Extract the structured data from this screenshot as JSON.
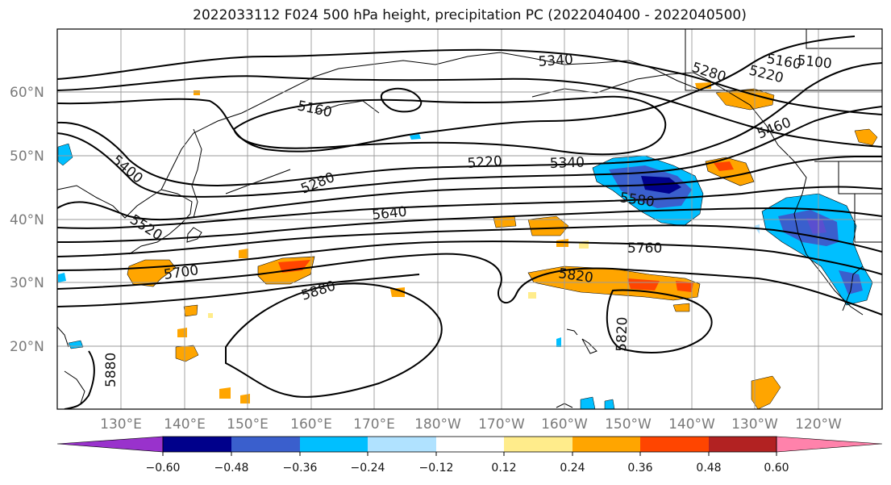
{
  "title": "2022033112 F024 500 hPa height, precipitation PC (2022040400 - 2022040500)",
  "lat_labels": [
    "60°N",
    "50°N",
    "40°N",
    "30°N",
    "20°N"
  ],
  "lon_labels": [
    "130°E",
    "140°E",
    "150°E",
    "160°E",
    "170°E",
    "180°W",
    "170°W",
    "160°W",
    "150°W",
    "140°W",
    "130°W",
    "120°W"
  ],
  "colorbar": {
    "ticks": [
      "−0.60",
      "−0.48",
      "−0.36",
      "−0.24",
      "−0.12",
      "0.12",
      "0.24",
      "0.36",
      "0.48",
      "0.60"
    ],
    "colors": [
      "#9932cc",
      "#00008b",
      "#3a5fcd",
      "#00bfff",
      "#b0e2ff",
      "#ffffff",
      "#ffec8b",
      "#ffa500",
      "#ff4500",
      "#b22222",
      "#ff82ab"
    ]
  },
  "contour_labels": [
    {
      "text": "5340"
    },
    {
      "text": "5280"
    },
    {
      "text": "5220"
    },
    {
      "text": "5160"
    },
    {
      "text": "5100"
    },
    {
      "text": "5160"
    },
    {
      "text": "5400"
    },
    {
      "text": "5520"
    },
    {
      "text": "5280"
    },
    {
      "text": "5220"
    },
    {
      "text": "5340"
    },
    {
      "text": "5460"
    },
    {
      "text": "5640"
    },
    {
      "text": "5580"
    },
    {
      "text": "5760"
    },
    {
      "text": "5700"
    },
    {
      "text": "5880"
    },
    {
      "text": "5820"
    },
    {
      "text": "5820"
    },
    {
      "text": "5880"
    }
  ]
}
